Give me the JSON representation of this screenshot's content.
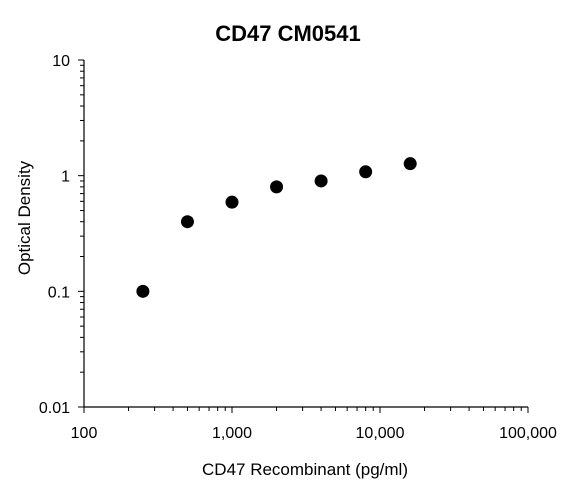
{
  "chart_data": {
    "type": "scatter",
    "title": "CD47 CM0541",
    "xlabel": "CD47 Recombinant (pg/ml)",
    "ylabel": "Optical Density",
    "xscale": "log",
    "yscale": "log",
    "xlim": [
      100,
      100000
    ],
    "ylim": [
      0.01,
      10
    ],
    "x_tick_labels": [
      "100",
      "1,000",
      "10,000",
      "100,000"
    ],
    "y_tick_labels": [
      "0.01",
      "0.1",
      "1",
      "10"
    ],
    "grid": false,
    "legend": "none",
    "marker_color": "#000000",
    "series": [
      {
        "x": [
          250,
          500,
          1000,
          2000,
          4000,
          8000,
          16000
        ],
        "y": [
          0.1,
          0.4,
          0.59,
          0.8,
          0.9,
          1.08,
          1.27
        ]
      }
    ]
  }
}
